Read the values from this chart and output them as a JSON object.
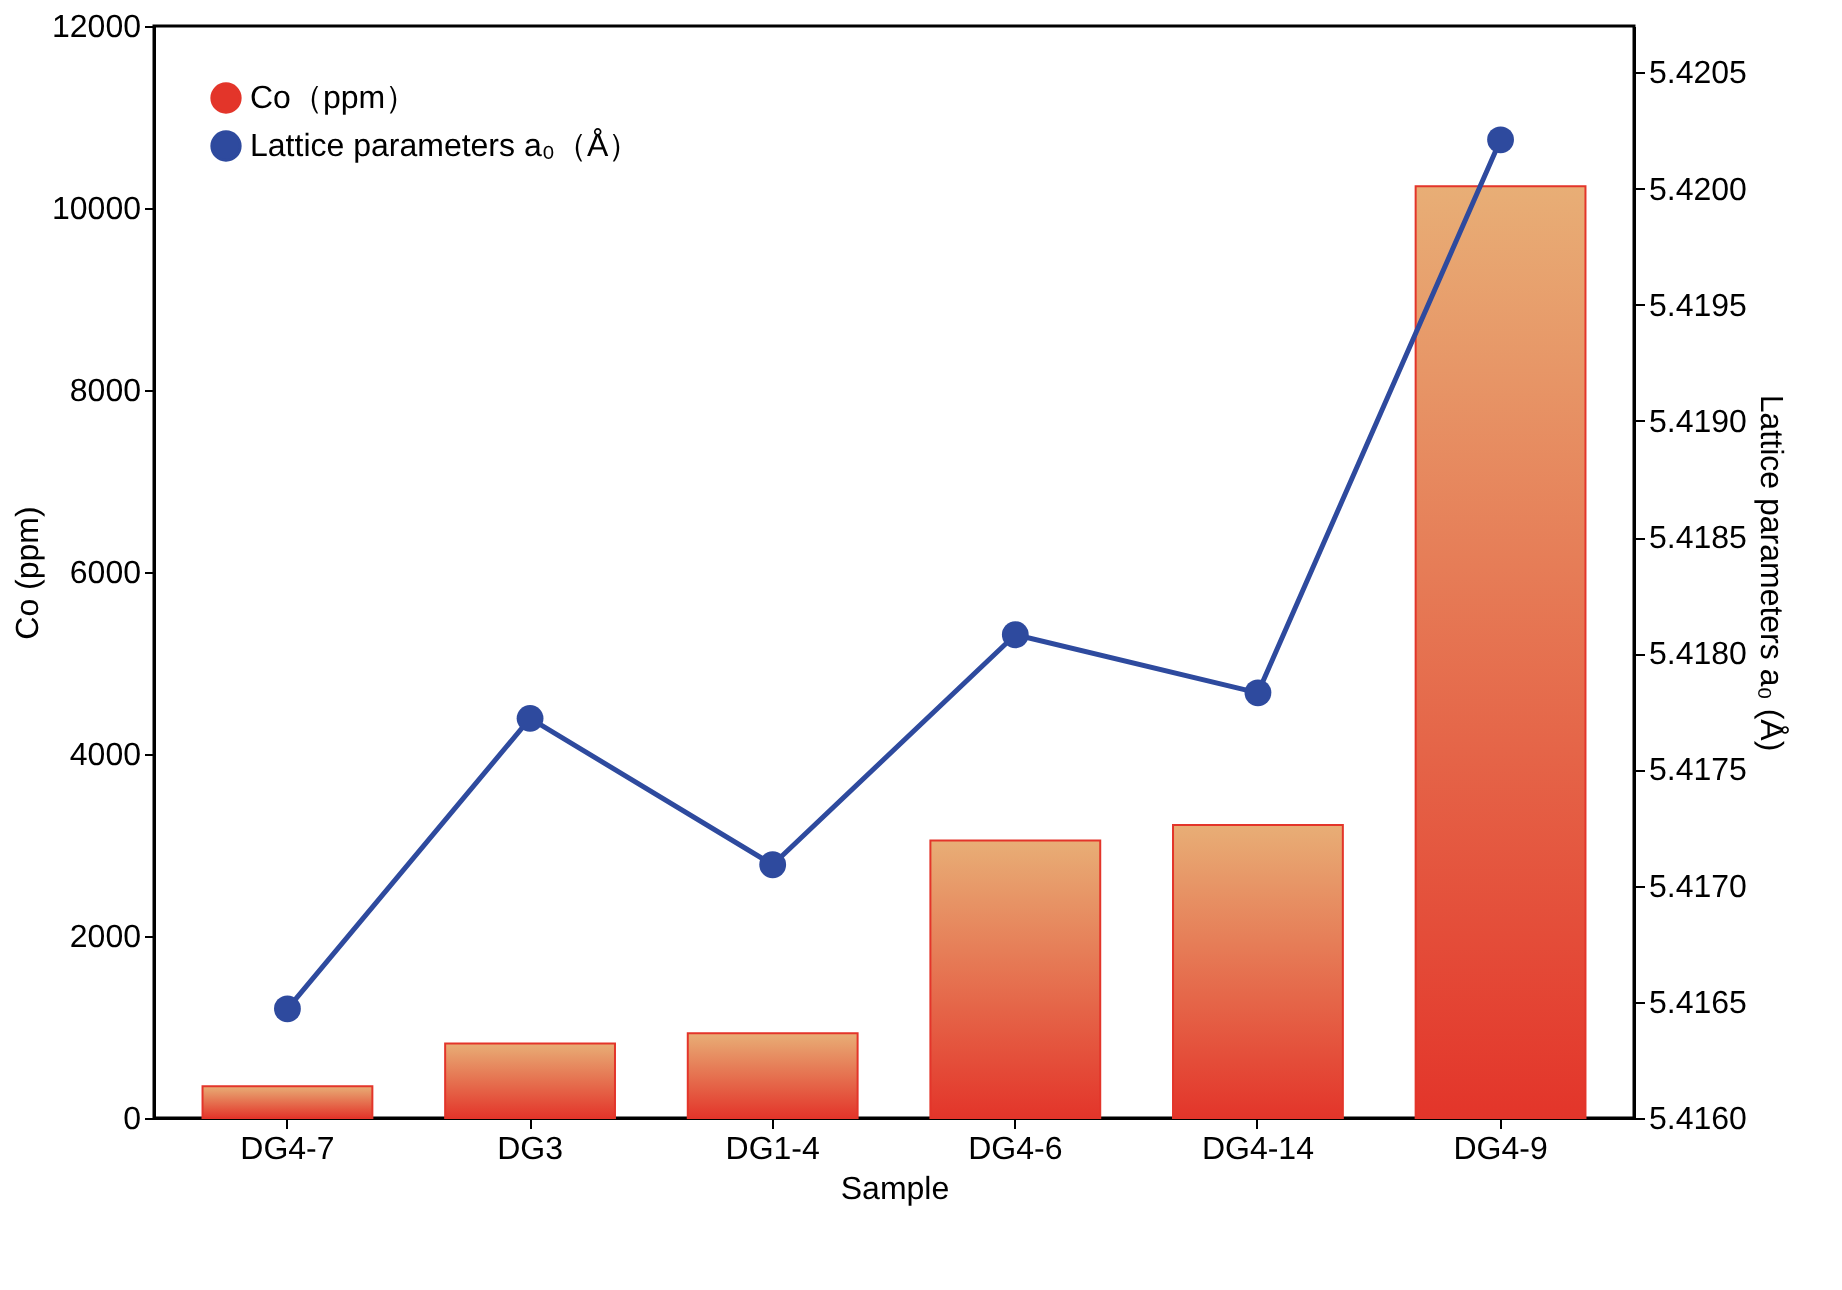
{
  "chart_data": {
    "type": "bar",
    "xlabel": "Sample",
    "ylabel": "Co (ppm)",
    "y2label": "Lattice parameters a₀ (Å)",
    "categories": [
      "DG4-7",
      "DG3",
      "DG1-4",
      "DG4-6",
      "DG4-14",
      "DG4-9"
    ],
    "series": [
      {
        "name": "Co（ppm）",
        "color": "#e3352a",
        "values": [
          350,
          820,
          930,
          3050,
          3220,
          10240
        ]
      },
      {
        "name": "Lattice parameters a₀（Å）",
        "type": "line",
        "axis": "y2",
        "color": "#2e4a9e",
        "values": [
          5.41647,
          5.41772,
          5.41709,
          5.41808,
          5.41783,
          5.42021
        ]
      }
    ],
    "ylim": [
      0,
      12000
    ],
    "yticks": [
      0,
      2000,
      4000,
      6000,
      8000,
      10000,
      12000
    ],
    "y2lim": [
      5.416,
      5.4207
    ],
    "y2ticks": [
      {
        "value": 5.416,
        "label": "5.4160"
      },
      5.4165,
      {
        "value": 5.417,
        "label": "5.4170"
      },
      5.4175,
      {
        "value": 5.418,
        "label": "5.4180"
      },
      5.4185,
      {
        "value": 5.419,
        "label": "5.4190"
      },
      5.4195,
      {
        "value": 5.42,
        "label": "5.4200"
      },
      5.4205
    ],
    "marker": "circle",
    "line_style": "solid",
    "legend": "top left",
    "grid": false
  }
}
